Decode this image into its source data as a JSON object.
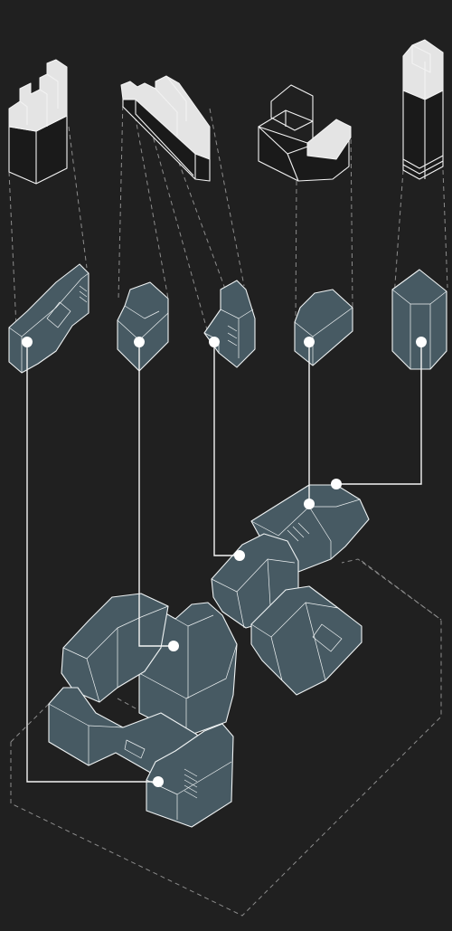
{
  "diagram": {
    "palette": {
      "background": "#202020",
      "building_fill": "#475a63",
      "line": "#f2f2f2",
      "dashed_guide": "#8c8c8c"
    },
    "layers": [
      "top-row-building-masses",
      "middle-row-footprint-blocks",
      "bottom-assembled-complex"
    ],
    "callout_marker": "white-dot"
  }
}
